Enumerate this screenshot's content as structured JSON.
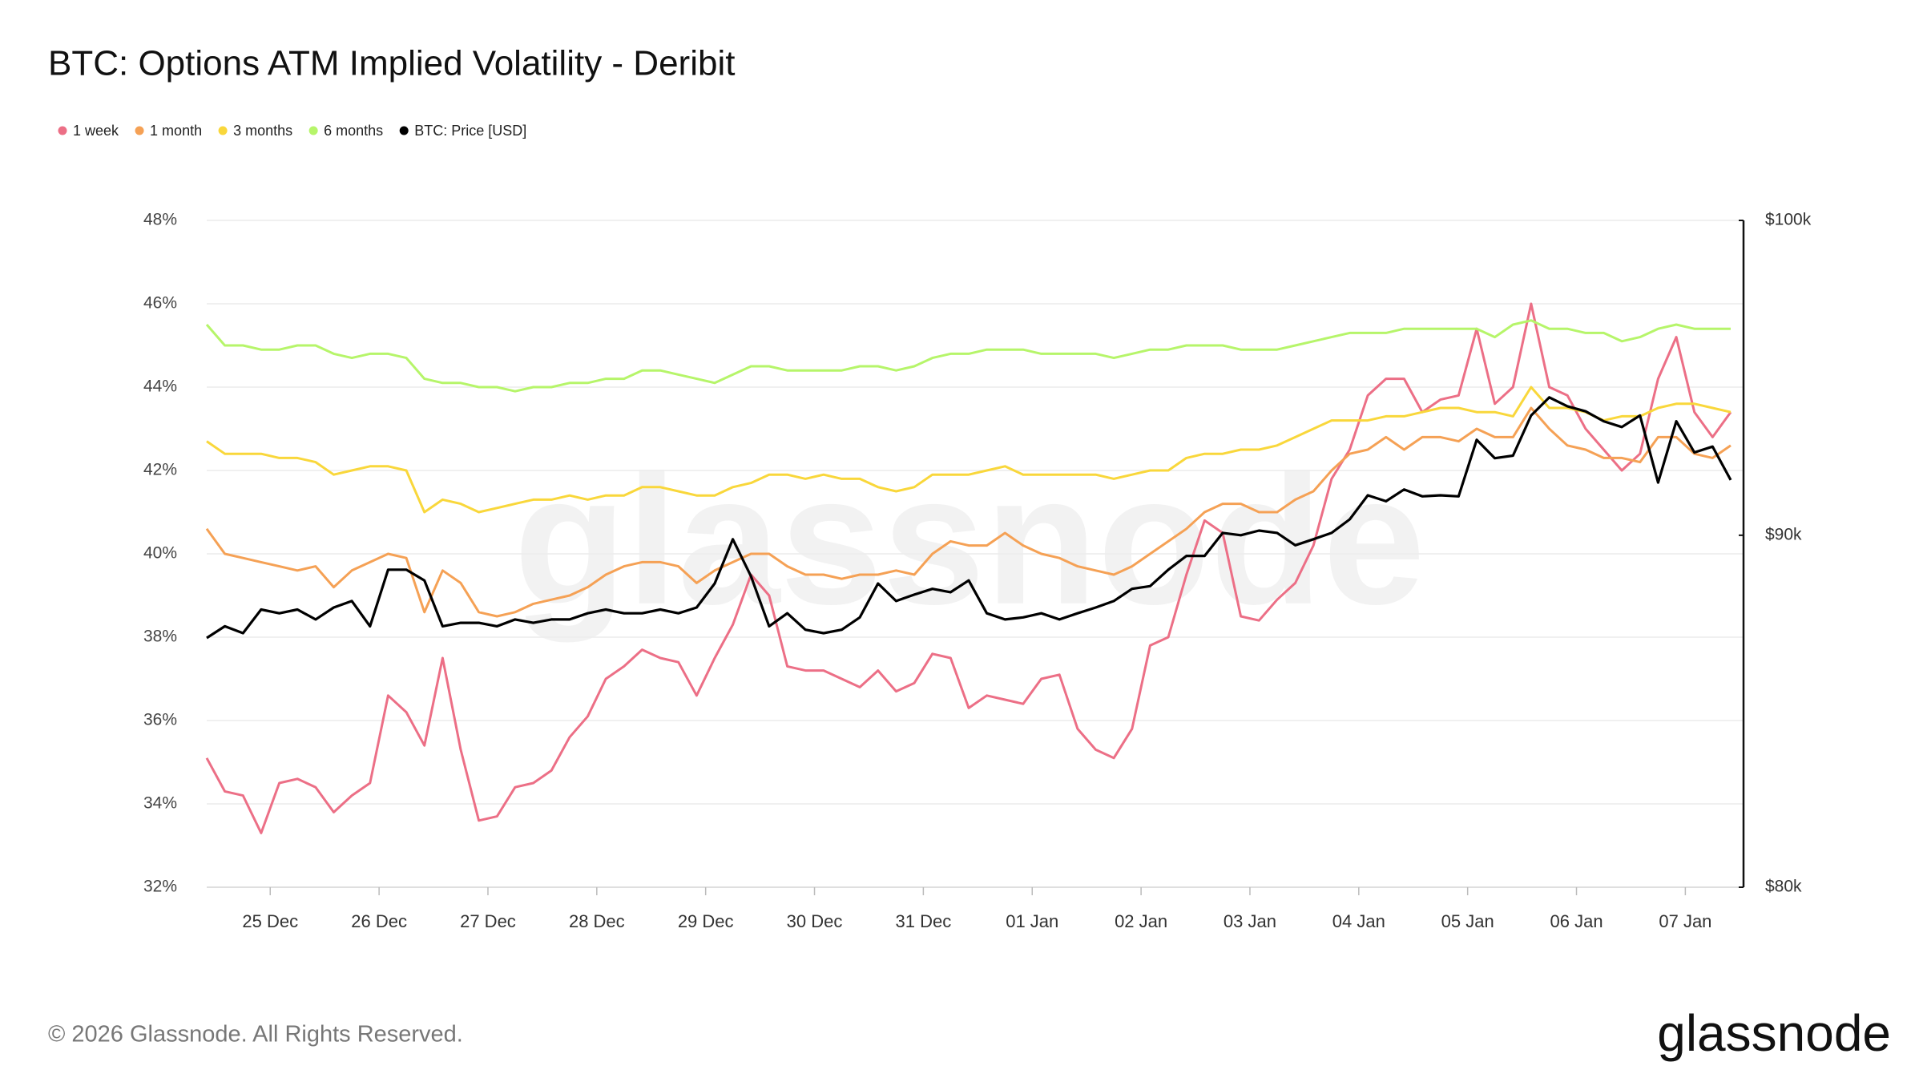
{
  "chart_data": {
    "type": "line",
    "title": "BTC: Options ATM Implied Volatility - Deribit",
    "footer": "© 2026 Glassnode. All Rights Reserved.",
    "logo": "glassnode",
    "legend": "top-left",
    "grid": true,
    "xlim": [
      0,
      84
    ],
    "xticks": [
      {
        "value": 3.5,
        "label": "25 Dec"
      },
      {
        "value": 9.5,
        "label": "26 Dec"
      },
      {
        "value": 15.5,
        "label": "27 Dec"
      },
      {
        "value": 21.5,
        "label": "28 Dec"
      },
      {
        "value": 27.5,
        "label": "29 Dec"
      },
      {
        "value": 33.5,
        "label": "30 Dec"
      },
      {
        "value": 39.5,
        "label": "31 Dec"
      },
      {
        "value": 45.5,
        "label": "01 Jan"
      },
      {
        "value": 51.5,
        "label": "02 Jan"
      },
      {
        "value": 57.5,
        "label": "03 Jan"
      },
      {
        "value": 63.5,
        "label": "04 Jan"
      },
      {
        "value": 69.5,
        "label": "05 Jan"
      },
      {
        "value": 75.5,
        "label": "06 Jan"
      },
      {
        "value": 81.5,
        "label": "07 Jan"
      }
    ],
    "ylim": [
      32,
      48
    ],
    "yticks": [
      {
        "value": 32,
        "label": "32%"
      },
      {
        "value": 34,
        "label": "34%"
      },
      {
        "value": 36,
        "label": "36%"
      },
      {
        "value": 38,
        "label": "38%"
      },
      {
        "value": 40,
        "label": "40%"
      },
      {
        "value": 42,
        "label": "42%"
      },
      {
        "value": 44,
        "label": "44%"
      },
      {
        "value": 46,
        "label": "46%"
      },
      {
        "value": 48,
        "label": "48%"
      }
    ],
    "y2lim": [
      80000,
      100000
    ],
    "y2scale": "log",
    "y2ticks": [
      {
        "value": 80000,
        "label": "$80k"
      },
      {
        "value": 90000,
        "label": "$90k"
      },
      {
        "value": 100000,
        "label": "$100k"
      }
    ],
    "series": [
      {
        "name": "1 week",
        "color": "#ec6f86",
        "values": [
          35.1,
          34.3,
          34.2,
          33.3,
          34.5,
          34.6,
          34.4,
          33.8,
          34.2,
          34.5,
          36.6,
          36.2,
          35.4,
          37.5,
          35.3,
          33.6,
          33.7,
          34.4,
          34.5,
          34.8,
          35.6,
          36.1,
          37.0,
          37.3,
          37.7,
          37.5,
          37.4,
          36.6,
          37.5,
          38.3,
          39.5,
          39.0,
          37.3,
          37.2,
          37.2,
          37.0,
          36.8,
          37.2,
          36.7,
          36.9,
          37.6,
          37.5,
          36.3,
          36.6,
          36.5,
          36.4,
          37.0,
          37.1,
          35.8,
          35.3,
          35.1,
          35.8,
          37.8,
          38.0,
          39.5,
          40.8,
          40.5,
          38.5,
          38.4,
          38.9,
          39.3,
          40.2,
          41.8,
          42.5,
          43.8,
          44.2,
          44.2,
          43.4,
          43.7,
          43.8,
          45.4,
          43.6,
          44.0,
          46.0,
          44.0,
          43.8,
          43.0,
          42.5,
          42.0,
          42.4,
          44.2,
          45.2,
          43.4,
          42.8,
          43.4
        ]
      },
      {
        "name": "1 month",
        "color": "#f5a155",
        "values": [
          40.6,
          40.0,
          39.9,
          39.8,
          39.7,
          39.6,
          39.7,
          39.2,
          39.6,
          39.8,
          40.0,
          39.9,
          38.6,
          39.6,
          39.3,
          38.6,
          38.5,
          38.6,
          38.8,
          38.9,
          39.0,
          39.2,
          39.5,
          39.7,
          39.8,
          39.8,
          39.7,
          39.3,
          39.6,
          39.8,
          40.0,
          40.0,
          39.7,
          39.5,
          39.5,
          39.4,
          39.5,
          39.5,
          39.6,
          39.5,
          40.0,
          40.3,
          40.2,
          40.2,
          40.5,
          40.2,
          40.0,
          39.9,
          39.7,
          39.6,
          39.5,
          39.7,
          40.0,
          40.3,
          40.6,
          41.0,
          41.2,
          41.2,
          41.0,
          41.0,
          41.3,
          41.5,
          42.0,
          42.4,
          42.5,
          42.8,
          42.5,
          42.8,
          42.8,
          42.7,
          43.0,
          42.8,
          42.8,
          43.5,
          43.0,
          42.6,
          42.5,
          42.3,
          42.3,
          42.2,
          42.8,
          42.8,
          42.4,
          42.3,
          42.6
        ]
      },
      {
        "name": "3 months",
        "color": "#f9d73b",
        "values": [
          42.7,
          42.4,
          42.4,
          42.4,
          42.3,
          42.3,
          42.2,
          41.9,
          42.0,
          42.1,
          42.1,
          42.0,
          41.0,
          41.3,
          41.2,
          41.0,
          41.1,
          41.2,
          41.3,
          41.3,
          41.4,
          41.3,
          41.4,
          41.4,
          41.6,
          41.6,
          41.5,
          41.4,
          41.4,
          41.6,
          41.7,
          41.9,
          41.9,
          41.8,
          41.9,
          41.8,
          41.8,
          41.6,
          41.5,
          41.6,
          41.9,
          41.9,
          41.9,
          42.0,
          42.1,
          41.9,
          41.9,
          41.9,
          41.9,
          41.9,
          41.8,
          41.9,
          42.0,
          42.0,
          42.3,
          42.4,
          42.4,
          42.5,
          42.5,
          42.6,
          42.8,
          43.0,
          43.2,
          43.2,
          43.2,
          43.3,
          43.3,
          43.4,
          43.5,
          43.5,
          43.4,
          43.4,
          43.3,
          44.0,
          43.5,
          43.5,
          43.4,
          43.2,
          43.3,
          43.3,
          43.5,
          43.6,
          43.6,
          43.5,
          43.4
        ]
      },
      {
        "name": "6 months",
        "color": "#b6f56a",
        "values": [
          45.5,
          45.0,
          45.0,
          44.9,
          44.9,
          45.0,
          45.0,
          44.8,
          44.7,
          44.8,
          44.8,
          44.7,
          44.2,
          44.1,
          44.1,
          44.0,
          44.0,
          43.9,
          44.0,
          44.0,
          44.1,
          44.1,
          44.2,
          44.2,
          44.4,
          44.4,
          44.3,
          44.2,
          44.1,
          44.3,
          44.5,
          44.5,
          44.4,
          44.4,
          44.4,
          44.4,
          44.5,
          44.5,
          44.4,
          44.5,
          44.7,
          44.8,
          44.8,
          44.9,
          44.9,
          44.9,
          44.8,
          44.8,
          44.8,
          44.8,
          44.7,
          44.8,
          44.9,
          44.9,
          45.0,
          45.0,
          45.0,
          44.9,
          44.9,
          44.9,
          45.0,
          45.1,
          45.2,
          45.3,
          45.3,
          45.3,
          45.4,
          45.4,
          45.4,
          45.4,
          45.4,
          45.2,
          45.5,
          45.6,
          45.4,
          45.4,
          45.3,
          45.3,
          45.1,
          45.2,
          45.4,
          45.5,
          45.4,
          45.4,
          45.4
        ]
      },
      {
        "name": "BTC: Price [USD]",
        "color": "#000000",
        "axis": "y2",
        "values": [
          86960,
          87300,
          87100,
          87790,
          87680,
          87790,
          87500,
          87850,
          88040,
          87300,
          88970,
          88970,
          88650,
          87300,
          87400,
          87400,
          87300,
          87500,
          87400,
          87500,
          87500,
          87680,
          87790,
          87680,
          87680,
          87790,
          87680,
          87850,
          88560,
          89880,
          88770,
          87300,
          87680,
          87200,
          87100,
          87200,
          87560,
          88560,
          88040,
          88230,
          88400,
          88300,
          88650,
          87680,
          87500,
          87560,
          87680,
          87500,
          87680,
          87850,
          88040,
          88400,
          88480,
          88970,
          89380,
          89380,
          90070,
          90000,
          90140,
          90070,
          89700,
          89880,
          90070,
          90480,
          91210,
          91030,
          91390,
          91180,
          91210,
          91180,
          92920,
          92350,
          92430,
          93680,
          94250,
          93970,
          93810,
          93500,
          93320,
          93680,
          91600,
          93500,
          92530,
          92710,
          91680
        ]
      }
    ]
  }
}
